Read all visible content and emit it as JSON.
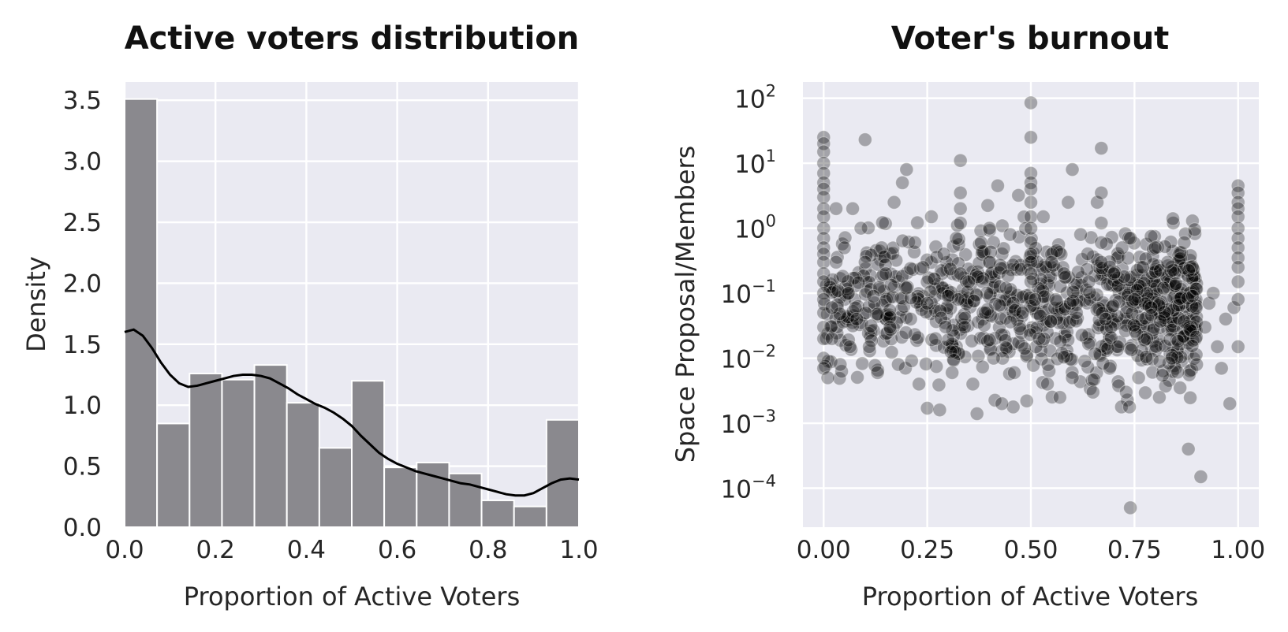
{
  "chart_data": [
    {
      "type": "bar",
      "subtype": "histogram-with-kde",
      "title": "Active voters distribution",
      "xlabel": "Proportion of Active Voters",
      "ylabel": "Density",
      "xlim": [
        0.0,
        1.0
      ],
      "ylim": [
        0.0,
        3.65
      ],
      "xticks": [
        "0.0",
        "0.2",
        "0.4",
        "0.6",
        "0.8",
        "1.0"
      ],
      "yticks": [
        "0.0",
        "0.5",
        "1.0",
        "1.5",
        "2.0",
        "2.5",
        "3.0",
        "3.5"
      ],
      "grid": true,
      "bar_color": "#8a898e",
      "line_color": "#000000",
      "bins": [
        {
          "x0": 0.0,
          "x1": 0.0714,
          "value": 3.51
        },
        {
          "x0": 0.0714,
          "x1": 0.1429,
          "value": 0.85
        },
        {
          "x0": 0.1429,
          "x1": 0.2143,
          "value": 1.26
        },
        {
          "x0": 0.2143,
          "x1": 0.2857,
          "value": 1.21
        },
        {
          "x0": 0.2857,
          "x1": 0.3571,
          "value": 1.33
        },
        {
          "x0": 0.3571,
          "x1": 0.4286,
          "value": 1.02
        },
        {
          "x0": 0.4286,
          "x1": 0.5,
          "value": 0.65
        },
        {
          "x0": 0.5,
          "x1": 0.5714,
          "value": 1.2
        },
        {
          "x0": 0.5714,
          "x1": 0.6429,
          "value": 0.49
        },
        {
          "x0": 0.6429,
          "x1": 0.7143,
          "value": 0.53
        },
        {
          "x0": 0.7143,
          "x1": 0.7857,
          "value": 0.44
        },
        {
          "x0": 0.7857,
          "x1": 0.8571,
          "value": 0.22
        },
        {
          "x0": 0.8571,
          "x1": 0.9286,
          "value": 0.17
        },
        {
          "x0": 0.9286,
          "x1": 1.0,
          "value": 0.88
        }
      ],
      "kde": {
        "x": [
          0.0,
          0.02,
          0.04,
          0.06,
          0.08,
          0.1,
          0.12,
          0.14,
          0.16,
          0.18,
          0.2,
          0.22,
          0.24,
          0.26,
          0.28,
          0.3,
          0.32,
          0.34,
          0.36,
          0.38,
          0.4,
          0.42,
          0.44,
          0.46,
          0.48,
          0.5,
          0.52,
          0.54,
          0.56,
          0.58,
          0.6,
          0.62,
          0.64,
          0.66,
          0.68,
          0.7,
          0.72,
          0.74,
          0.76,
          0.78,
          0.8,
          0.82,
          0.84,
          0.86,
          0.88,
          0.9,
          0.92,
          0.94,
          0.96,
          0.98,
          1.0
        ],
        "y": [
          1.6,
          1.62,
          1.57,
          1.47,
          1.35,
          1.25,
          1.18,
          1.15,
          1.16,
          1.18,
          1.2,
          1.22,
          1.24,
          1.25,
          1.25,
          1.24,
          1.22,
          1.18,
          1.14,
          1.09,
          1.05,
          1.01,
          0.98,
          0.94,
          0.89,
          0.83,
          0.75,
          0.68,
          0.61,
          0.56,
          0.52,
          0.49,
          0.46,
          0.44,
          0.42,
          0.4,
          0.38,
          0.36,
          0.35,
          0.33,
          0.31,
          0.29,
          0.27,
          0.26,
          0.26,
          0.28,
          0.32,
          0.36,
          0.39,
          0.4,
          0.39
        ]
      }
    },
    {
      "type": "scatter",
      "title": "Voter's burnout",
      "xlabel": "Proportion of Active Voters",
      "ylabel": "Space Proposal/Members",
      "xlim": [
        -0.05,
        1.05
      ],
      "ylim_log10": [
        -4.6,
        2.25
      ],
      "yscale": "log",
      "xticks": [
        "0.00",
        "0.25",
        "0.50",
        "0.75",
        "1.00"
      ],
      "yticks": [
        {
          "base": "10",
          "exp": "2"
        },
        {
          "base": "10",
          "exp": "1"
        },
        {
          "base": "10",
          "exp": "0"
        },
        {
          "base": "10",
          "exp": "−1"
        },
        {
          "base": "10",
          "exp": "−2"
        },
        {
          "base": "10",
          "exp": "−3"
        },
        {
          "base": "10",
          "exp": "−4"
        }
      ],
      "grid": true,
      "point_color": "#000000",
      "point_alpha": 0.3,
      "points": [
        [
          0.0,
          25
        ],
        [
          0.0,
          20
        ],
        [
          0.0,
          15
        ],
        [
          0.0,
          10
        ],
        [
          0.0,
          7
        ],
        [
          0.0,
          5
        ],
        [
          0.0,
          4
        ],
        [
          0.0,
          3
        ],
        [
          0.0,
          2
        ],
        [
          0.0,
          1.5
        ],
        [
          0.0,
          1
        ],
        [
          0.0,
          0.7
        ],
        [
          0.0,
          0.5
        ],
        [
          0.0,
          0.4
        ],
        [
          0.0,
          0.3
        ],
        [
          0.0,
          0.2
        ],
        [
          0.0,
          0.15
        ],
        [
          0.0,
          0.1
        ],
        [
          0.0,
          0.08
        ],
        [
          0.0,
          0.05
        ],
        [
          0.0,
          0.03
        ],
        [
          0.0,
          0.02
        ],
        [
          0.0,
          0.01
        ],
        [
          0.0,
          0.007
        ],
        [
          0.01,
          0.005
        ],
        [
          0.02,
          0.02
        ],
        [
          0.02,
          0.06
        ],
        [
          0.03,
          0.3
        ],
        [
          0.03,
          2.0
        ],
        [
          0.04,
          0.008
        ],
        [
          0.05,
          0.5
        ],
        [
          0.06,
          0.1
        ],
        [
          0.07,
          2.0
        ],
        [
          0.08,
          0.04
        ],
        [
          0.09,
          1.0
        ],
        [
          0.1,
          23
        ],
        [
          0.1,
          0.3
        ],
        [
          0.11,
          0.015
        ],
        [
          0.12,
          0.09
        ],
        [
          0.13,
          0.006
        ],
        [
          0.14,
          0.5
        ],
        [
          0.15,
          0.2
        ],
        [
          0.16,
          0.03
        ],
        [
          0.17,
          2.5
        ],
        [
          0.18,
          0.008
        ],
        [
          0.19,
          5.0
        ],
        [
          0.2,
          8.0
        ],
        [
          0.2,
          0.12
        ],
        [
          0.21,
          0.04
        ],
        [
          0.22,
          0.6
        ],
        [
          0.23,
          0.004
        ],
        [
          0.24,
          0.25
        ],
        [
          0.25,
          0.0017
        ],
        [
          0.25,
          0.07
        ],
        [
          0.26,
          1.5
        ],
        [
          0.27,
          0.02
        ],
        [
          0.28,
          0.0016
        ],
        [
          0.29,
          0.4
        ],
        [
          0.3,
          0.09
        ],
        [
          0.31,
          0.006
        ],
        [
          0.32,
          0.7
        ],
        [
          0.33,
          3.5
        ],
        [
          0.33,
          2.0
        ],
        [
          0.33,
          1.2
        ],
        [
          0.33,
          0.2
        ],
        [
          0.33,
          11
        ],
        [
          0.34,
          0.03
        ],
        [
          0.35,
          0.15
        ],
        [
          0.36,
          0.004
        ],
        [
          0.37,
          0.0014
        ],
        [
          0.38,
          0.6
        ],
        [
          0.39,
          0.05
        ],
        [
          0.4,
          1.0
        ],
        [
          0.4,
          0.3
        ],
        [
          0.41,
          0.01
        ],
        [
          0.42,
          4.5
        ],
        [
          0.43,
          0.002
        ],
        [
          0.44,
          0.12
        ],
        [
          0.45,
          0.8
        ],
        [
          0.46,
          0.006
        ],
        [
          0.47,
          3.2
        ],
        [
          0.48,
          0.05
        ],
        [
          0.49,
          0.0022
        ],
        [
          0.5,
          85
        ],
        [
          0.5,
          25
        ],
        [
          0.5,
          7
        ],
        [
          0.5,
          5
        ],
        [
          0.5,
          4
        ],
        [
          0.5,
          2.5
        ],
        [
          0.5,
          1.5
        ],
        [
          0.5,
          1
        ],
        [
          0.5,
          0.6
        ],
        [
          0.5,
          0.4
        ],
        [
          0.5,
          0.3
        ],
        [
          0.5,
          0.2
        ],
        [
          0.5,
          0.15
        ],
        [
          0.51,
          0.08
        ],
        [
          0.52,
          0.02
        ],
        [
          0.53,
          1.5
        ],
        [
          0.54,
          0.004
        ],
        [
          0.55,
          0.3
        ],
        [
          0.56,
          0.08
        ],
        [
          0.57,
          0.0025
        ],
        [
          0.58,
          0.2
        ],
        [
          0.59,
          2.5
        ],
        [
          0.6,
          8.0
        ],
        [
          0.6,
          0.005
        ],
        [
          0.61,
          0.05
        ],
        [
          0.62,
          0.8
        ],
        [
          0.63,
          0.009
        ],
        [
          0.64,
          0.15
        ],
        [
          0.65,
          0.003
        ],
        [
          0.66,
          2.5
        ],
        [
          0.67,
          17
        ],
        [
          0.67,
          3.5
        ],
        [
          0.67,
          1.2
        ],
        [
          0.67,
          0.6
        ],
        [
          0.67,
          0.3
        ],
        [
          0.68,
          0.04
        ],
        [
          0.69,
          0.007
        ],
        [
          0.7,
          0.2
        ],
        [
          0.71,
          0.015
        ],
        [
          0.72,
          0.5
        ],
        [
          0.73,
          0.003
        ],
        [
          0.74,
          5e-05
        ],
        [
          0.74,
          0.7
        ],
        [
          0.75,
          0.08
        ],
        [
          0.76,
          0.005
        ],
        [
          0.77,
          0.25
        ],
        [
          0.78,
          0.02
        ],
        [
          0.79,
          0.06
        ],
        [
          0.8,
          0.5
        ],
        [
          0.81,
          0.0025
        ],
        [
          0.82,
          0.12
        ],
        [
          0.83,
          0.3
        ],
        [
          0.84,
          0.01
        ],
        [
          0.85,
          0.14
        ],
        [
          0.86,
          0.0035
        ],
        [
          0.87,
          0.6
        ],
        [
          0.88,
          0.0004
        ],
        [
          0.89,
          0.09
        ],
        [
          0.9,
          0.008
        ],
        [
          0.91,
          0.00015
        ],
        [
          0.92,
          0.03
        ],
        [
          0.93,
          0.07
        ],
        [
          0.94,
          0.1
        ],
        [
          0.95,
          0.015
        ],
        [
          0.96,
          0.007
        ],
        [
          0.97,
          0.04
        ],
        [
          0.98,
          0.002
        ],
        [
          0.99,
          0.06
        ],
        [
          1.0,
          4.5
        ],
        [
          1.0,
          3.5
        ],
        [
          1.0,
          2.5
        ],
        [
          1.0,
          2.0
        ],
        [
          1.0,
          1.5
        ],
        [
          1.0,
          1.0
        ],
        [
          1.0,
          0.7
        ],
        [
          1.0,
          0.5
        ],
        [
          1.0,
          0.35
        ],
        [
          1.0,
          0.25
        ],
        [
          1.0,
          0.15
        ],
        [
          1.0,
          0.08
        ],
        [
          1.0,
          0.015
        ]
      ],
      "cloud": {
        "count": 900,
        "x_range": [
          0.0,
          0.9
        ],
        "log10_center": -1.2,
        "log10_spread": 0.55,
        "x_decay": 0.55
      }
    }
  ]
}
